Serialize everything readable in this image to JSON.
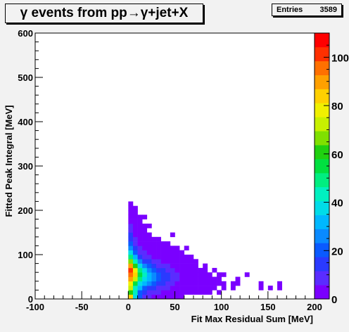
{
  "chart_data": {
    "type": "heatmap",
    "title": "γ events from pp→γ+jet+X",
    "xlabel": "Fit Max Residual Sum [MeV]",
    "ylabel": "Fitted Peak Integral [MeV]",
    "xlim": [
      -100,
      200
    ],
    "ylim": [
      0,
      600
    ],
    "x_ticks": [
      -100,
      -50,
      0,
      50,
      100,
      150,
      200
    ],
    "y_ticks": [
      0,
      100,
      200,
      300,
      400,
      500,
      600
    ],
    "bin_width_x": 5,
    "bin_width_y": 10,
    "z_ticks": [
      0,
      20,
      40,
      60,
      80,
      100
    ],
    "z_tick_labels": [
      "0",
      "20",
      "40",
      "60",
      "80",
      "100"
    ],
    "zlim": [
      0,
      110
    ],
    "stats": {
      "label": "Entries",
      "value": "3589"
    },
    "palette": [
      "#7a00ff",
      "#5a2cff",
      "#2a3aff",
      "#0a5aff",
      "#0a8aff",
      "#00b8ff",
      "#00dce8",
      "#00f0c0",
      "#00ee80",
      "#00e040",
      "#20d010",
      "#80e000",
      "#c8f000",
      "#f0f000",
      "#ffd000",
      "#ffa000",
      "#ff7000",
      "#ff3000",
      "#ff0000"
    ],
    "bins": [
      [
        0,
        0,
        85
      ],
      [
        0,
        1,
        60
      ],
      [
        0,
        2,
        70
      ],
      [
        0,
        3,
        80
      ],
      [
        0,
        4,
        92
      ],
      [
        0,
        5,
        98
      ],
      [
        0,
        6,
        102
      ],
      [
        0,
        7,
        88
      ],
      [
        0,
        8,
        68
      ],
      [
        0,
        9,
        52
      ],
      [
        0,
        10,
        38
      ],
      [
        0,
        11,
        28
      ],
      [
        0,
        12,
        22
      ],
      [
        0,
        13,
        16
      ],
      [
        0,
        14,
        12
      ],
      [
        0,
        15,
        8
      ],
      [
        0,
        16,
        6
      ],
      [
        0,
        17,
        4
      ],
      [
        0,
        18,
        3
      ],
      [
        0,
        19,
        3
      ],
      [
        0,
        20,
        2
      ],
      [
        0,
        21,
        1
      ],
      [
        1,
        0,
        40
      ],
      [
        1,
        1,
        42
      ],
      [
        1,
        2,
        45
      ],
      [
        1,
        3,
        55
      ],
      [
        1,
        4,
        70
      ],
      [
        1,
        5,
        82
      ],
      [
        1,
        6,
        78
      ],
      [
        1,
        7,
        60
      ],
      [
        1,
        8,
        45
      ],
      [
        1,
        9,
        32
      ],
      [
        1,
        10,
        22
      ],
      [
        1,
        11,
        15
      ],
      [
        1,
        12,
        10
      ],
      [
        1,
        13,
        6
      ],
      [
        1,
        14,
        5
      ],
      [
        1,
        15,
        3
      ],
      [
        1,
        16,
        2
      ],
      [
        1,
        17,
        2
      ],
      [
        1,
        18,
        1
      ],
      [
        1,
        19,
        1
      ],
      [
        1,
        20,
        1
      ],
      [
        2,
        0,
        18
      ],
      [
        2,
        1,
        22
      ],
      [
        2,
        2,
        30
      ],
      [
        2,
        3,
        40
      ],
      [
        2,
        4,
        50
      ],
      [
        2,
        5,
        55
      ],
      [
        2,
        6,
        48
      ],
      [
        2,
        7,
        36
      ],
      [
        2,
        8,
        24
      ],
      [
        2,
        9,
        16
      ],
      [
        2,
        10,
        10
      ],
      [
        2,
        11,
        6
      ],
      [
        2,
        12,
        4
      ],
      [
        2,
        13,
        3
      ],
      [
        2,
        14,
        2
      ],
      [
        2,
        15,
        2
      ],
      [
        2,
        16,
        1
      ],
      [
        2,
        17,
        1
      ],
      [
        2,
        18,
        1
      ],
      [
        3,
        0,
        10
      ],
      [
        3,
        1,
        14
      ],
      [
        3,
        2,
        22
      ],
      [
        3,
        3,
        30
      ],
      [
        3,
        4,
        38
      ],
      [
        3,
        5,
        42
      ],
      [
        3,
        6,
        36
      ],
      [
        3,
        7,
        26
      ],
      [
        3,
        8,
        16
      ],
      [
        3,
        9,
        10
      ],
      [
        3,
        10,
        6
      ],
      [
        3,
        11,
        4
      ],
      [
        3,
        12,
        3
      ],
      [
        3,
        13,
        2
      ],
      [
        3,
        14,
        1
      ],
      [
        3,
        15,
        1
      ],
      [
        3,
        16,
        1
      ],
      [
        3,
        18,
        1
      ],
      [
        4,
        0,
        6
      ],
      [
        4,
        1,
        10
      ],
      [
        4,
        2,
        16
      ],
      [
        4,
        3,
        24
      ],
      [
        4,
        4,
        30
      ],
      [
        4,
        5,
        34
      ],
      [
        4,
        6,
        28
      ],
      [
        4,
        7,
        20
      ],
      [
        4,
        8,
        12
      ],
      [
        4,
        9,
        8
      ],
      [
        4,
        10,
        4
      ],
      [
        4,
        11,
        3
      ],
      [
        4,
        12,
        2
      ],
      [
        4,
        13,
        1
      ],
      [
        4,
        14,
        1
      ],
      [
        4,
        16,
        1
      ],
      [
        5,
        0,
        4
      ],
      [
        5,
        1,
        8
      ],
      [
        5,
        2,
        14
      ],
      [
        5,
        3,
        20
      ],
      [
        5,
        4,
        26
      ],
      [
        5,
        5,
        28
      ],
      [
        5,
        6,
        22
      ],
      [
        5,
        7,
        14
      ],
      [
        5,
        8,
        8
      ],
      [
        5,
        9,
        5
      ],
      [
        5,
        10,
        3
      ],
      [
        5,
        11,
        2
      ],
      [
        5,
        12,
        1
      ],
      [
        5,
        13,
        1
      ],
      [
        6,
        0,
        3
      ],
      [
        6,
        1,
        6
      ],
      [
        6,
        2,
        10
      ],
      [
        6,
        3,
        16
      ],
      [
        6,
        4,
        20
      ],
      [
        6,
        5,
        22
      ],
      [
        6,
        6,
        16
      ],
      [
        6,
        7,
        10
      ],
      [
        6,
        8,
        6
      ],
      [
        6,
        9,
        3
      ],
      [
        6,
        10,
        2
      ],
      [
        6,
        11,
        1
      ],
      [
        6,
        12,
        1
      ],
      [
        6,
        13,
        1
      ],
      [
        7,
        0,
        2
      ],
      [
        7,
        1,
        5
      ],
      [
        7,
        2,
        8
      ],
      [
        7,
        3,
        12
      ],
      [
        7,
        4,
        16
      ],
      [
        7,
        5,
        17
      ],
      [
        7,
        6,
        12
      ],
      [
        7,
        7,
        8
      ],
      [
        7,
        8,
        4
      ],
      [
        7,
        9,
        2
      ],
      [
        7,
        10,
        2
      ],
      [
        7,
        11,
        1
      ],
      [
        7,
        12,
        1
      ],
      [
        8,
        0,
        2
      ],
      [
        8,
        1,
        4
      ],
      [
        8,
        2,
        6
      ],
      [
        8,
        3,
        10
      ],
      [
        8,
        4,
        12
      ],
      [
        8,
        5,
        12
      ],
      [
        8,
        6,
        9
      ],
      [
        8,
        7,
        6
      ],
      [
        8,
        8,
        3
      ],
      [
        8,
        9,
        2
      ],
      [
        8,
        10,
        1
      ],
      [
        8,
        11,
        1
      ],
      [
        8,
        12,
        1
      ],
      [
        9,
        0,
        1
      ],
      [
        9,
        1,
        3
      ],
      [
        9,
        2,
        5
      ],
      [
        9,
        3,
        7
      ],
      [
        9,
        4,
        9
      ],
      [
        9,
        5,
        9
      ],
      [
        9,
        6,
        7
      ],
      [
        9,
        7,
        4
      ],
      [
        9,
        8,
        2
      ],
      [
        9,
        9,
        1
      ],
      [
        9,
        10,
        1
      ],
      [
        9,
        11,
        1
      ],
      [
        9,
        14,
        1
      ],
      [
        10,
        0,
        1
      ],
      [
        10,
        1,
        2
      ],
      [
        10,
        2,
        4
      ],
      [
        10,
        3,
        5
      ],
      [
        10,
        4,
        6
      ],
      [
        10,
        5,
        6
      ],
      [
        10,
        6,
        5
      ],
      [
        10,
        7,
        3
      ],
      [
        10,
        8,
        2
      ],
      [
        10,
        9,
        1
      ],
      [
        10,
        10,
        1
      ],
      [
        10,
        11,
        1
      ],
      [
        11,
        0,
        1
      ],
      [
        11,
        1,
        2
      ],
      [
        11,
        2,
        3
      ],
      [
        11,
        3,
        4
      ],
      [
        11,
        4,
        5
      ],
      [
        11,
        5,
        5
      ],
      [
        11,
        6,
        3
      ],
      [
        11,
        7,
        2
      ],
      [
        11,
        8,
        1
      ],
      [
        11,
        9,
        1
      ],
      [
        11,
        10,
        1
      ],
      [
        12,
        1,
        1
      ],
      [
        12,
        2,
        2
      ],
      [
        12,
        3,
        3
      ],
      [
        12,
        4,
        4
      ],
      [
        12,
        5,
        3
      ],
      [
        12,
        6,
        2
      ],
      [
        12,
        7,
        2
      ],
      [
        12,
        8,
        1
      ],
      [
        12,
        9,
        1
      ],
      [
        12,
        11,
        1
      ],
      [
        13,
        1,
        1
      ],
      [
        13,
        2,
        2
      ],
      [
        13,
        3,
        2
      ],
      [
        13,
        4,
        3
      ],
      [
        13,
        5,
        2
      ],
      [
        13,
        6,
        2
      ],
      [
        13,
        7,
        1
      ],
      [
        13,
        8,
        1
      ],
      [
        13,
        9,
        1
      ],
      [
        14,
        1,
        1
      ],
      [
        14,
        2,
        1
      ],
      [
        14,
        3,
        2
      ],
      [
        14,
        4,
        2
      ],
      [
        14,
        5,
        2
      ],
      [
        14,
        6,
        1
      ],
      [
        14,
        7,
        1
      ],
      [
        14,
        8,
        1
      ],
      [
        15,
        1,
        1
      ],
      [
        15,
        2,
        1
      ],
      [
        15,
        3,
        1
      ],
      [
        15,
        4,
        2
      ],
      [
        15,
        5,
        1
      ],
      [
        15,
        6,
        1
      ],
      [
        16,
        1,
        1
      ],
      [
        16,
        2,
        1
      ],
      [
        16,
        3,
        1
      ],
      [
        16,
        4,
        1
      ],
      [
        16,
        5,
        1
      ],
      [
        16,
        6,
        1
      ],
      [
        16,
        7,
        1
      ],
      [
        17,
        1,
        1
      ],
      [
        17,
        2,
        1
      ],
      [
        17,
        3,
        1
      ],
      [
        17,
        4,
        1
      ],
      [
        17,
        5,
        1
      ],
      [
        18,
        2,
        1
      ],
      [
        18,
        3,
        1
      ],
      [
        18,
        4,
        1
      ],
      [
        18,
        6,
        1
      ],
      [
        19,
        1,
        1
      ],
      [
        19,
        3,
        1
      ],
      [
        19,
        4,
        1
      ],
      [
        19,
        5,
        1
      ],
      [
        20,
        2,
        1
      ],
      [
        20,
        3,
        1
      ],
      [
        20,
        5,
        1
      ],
      [
        22,
        2,
        1
      ],
      [
        22,
        3,
        1
      ],
      [
        23,
        3,
        1
      ],
      [
        23,
        4,
        1
      ],
      [
        25,
        5,
        1
      ],
      [
        28,
        2,
        1
      ],
      [
        28,
        3,
        1
      ],
      [
        30,
        2,
        1
      ],
      [
        32,
        2,
        1
      ],
      [
        32,
        3,
        1
      ]
    ]
  }
}
